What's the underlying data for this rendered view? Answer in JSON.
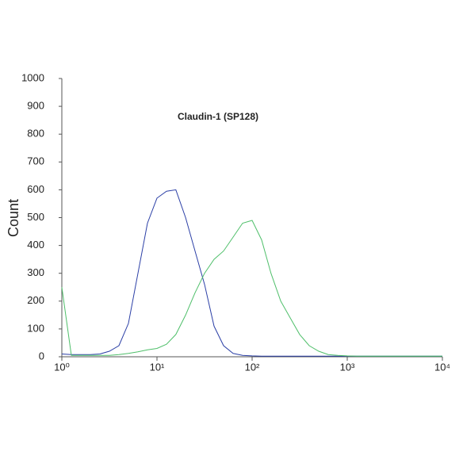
{
  "chart_data": {
    "type": "line",
    "title": "Claudin-1 (SP128)",
    "y_label": "Count",
    "xscale": "log",
    "x": [
      1,
      1.26,
      1.58,
      2,
      2.51,
      3.16,
      3.98,
      5.01,
      6.31,
      7.94,
      10,
      12.6,
      15.8,
      20,
      25.1,
      31.6,
      39.8,
      50.1,
      63.1,
      79.4,
      100,
      126,
      158,
      200,
      251,
      316,
      398,
      501,
      631,
      794,
      1000,
      1259,
      1585,
      1995,
      2512,
      3162,
      3981,
      5012,
      6310,
      7943,
      10000
    ],
    "series": [
      {
        "color": "#2b3fa6",
        "values": [
          10,
          8,
          8,
          8,
          10,
          20,
          40,
          120,
          300,
          480,
          570,
          595,
          600,
          500,
          380,
          260,
          110,
          40,
          12,
          5,
          3,
          2,
          2,
          2,
          2,
          2,
          2,
          2,
          2,
          2,
          2,
          2,
          2,
          2,
          2,
          2,
          2,
          2,
          2,
          2,
          2
        ]
      },
      {
        "color": "#4fbf6a",
        "values": [
          250,
          5,
          5,
          5,
          5,
          5,
          8,
          12,
          18,
          25,
          30,
          45,
          80,
          150,
          230,
          300,
          350,
          380,
          430,
          480,
          490,
          420,
          300,
          200,
          140,
          80,
          40,
          20,
          8,
          5,
          3,
          2,
          2,
          2,
          2,
          2,
          2,
          2,
          2,
          2,
          2
        ]
      }
    ],
    "xlim": [
      1,
      10000
    ],
    "xticks": [
      {
        "value": 1,
        "label": "10⁰"
      },
      {
        "value": 10,
        "label": "10¹"
      },
      {
        "value": 100,
        "label": "10²"
      },
      {
        "value": 1000,
        "label": "10³"
      },
      {
        "value": 10000,
        "label": "10⁴"
      }
    ],
    "ylim": [
      0,
      1000
    ],
    "yticks": [
      0,
      100,
      200,
      300,
      400,
      500,
      600,
      700,
      800,
      900,
      1000
    ]
  }
}
